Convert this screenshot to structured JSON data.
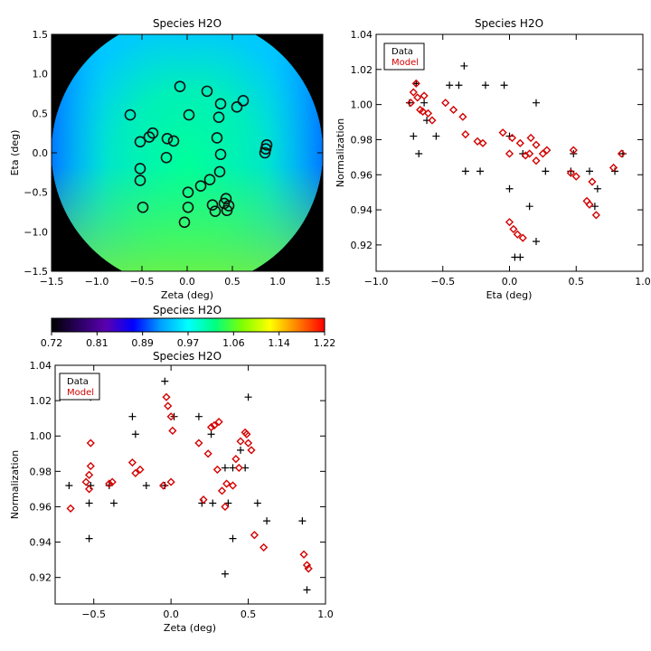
{
  "chart_data": [
    {
      "id": "map",
      "type": "heatmap",
      "title": "Species H2O",
      "xlabel": "Zeta (deg)",
      "ylabel": "Eta (deg)",
      "xlim": [
        -1.5,
        1.5
      ],
      "ylim": [
        -1.5,
        1.5
      ],
      "xticks": [
        -1.5,
        -1.0,
        -0.5,
        0.0,
        0.5,
        1.0,
        1.5
      ],
      "yticks": [
        -1.5,
        -1.0,
        -0.5,
        0.0,
        0.5,
        1.0,
        1.5
      ],
      "xtick_labels": [
        "−1.5",
        "−1.0",
        "−0.5",
        "0.0",
        "0.5",
        "1.0",
        "1.5"
      ],
      "ytick_labels": [
        "−1.5",
        "−1.0",
        "−0.5",
        "0.0",
        "0.5",
        "1.0",
        "1.5"
      ],
      "field_radius": 1.5,
      "outside_color": "#000000",
      "probe_points": [
        [
          -0.08,
          0.84
        ],
        [
          0.22,
          0.78
        ],
        [
          0.62,
          0.66
        ],
        [
          0.55,
          0.58
        ],
        [
          0.37,
          0.62
        ],
        [
          -0.63,
          0.48
        ],
        [
          -0.38,
          0.25
        ],
        [
          0.02,
          0.48
        ],
        [
          0.35,
          0.45
        ],
        [
          -0.42,
          0.2
        ],
        [
          -0.52,
          0.14
        ],
        [
          -0.22,
          0.18
        ],
        [
          -0.15,
          0.15
        ],
        [
          0.33,
          0.19
        ],
        [
          0.88,
          0.1
        ],
        [
          0.87,
          0.05
        ],
        [
          0.86,
          0.0
        ],
        [
          0.37,
          -0.02
        ],
        [
          -0.23,
          -0.06
        ],
        [
          -0.52,
          -0.2
        ],
        [
          -0.52,
          -0.35
        ],
        [
          0.36,
          -0.24
        ],
        [
          0.25,
          -0.34
        ],
        [
          0.15,
          -0.42
        ],
        [
          0.01,
          -0.5
        ],
        [
          0.43,
          -0.58
        ],
        [
          0.41,
          -0.64
        ],
        [
          0.28,
          -0.66
        ],
        [
          0.46,
          -0.67
        ],
        [
          0.44,
          -0.73
        ],
        [
          0.31,
          -0.74
        ],
        [
          -0.49,
          -0.69
        ],
        [
          0.01,
          -0.69
        ],
        [
          -0.03,
          -0.88
        ]
      ]
    },
    {
      "id": "colorbar",
      "type": "heatmap",
      "title": "Species H2O",
      "range": [
        0.72,
        1.22
      ],
      "tick_labels": [
        "0.72",
        "0.81",
        "0.89",
        "0.97",
        "1.06",
        "1.14",
        "1.22"
      ],
      "colormap_stops": [
        "#000000",
        "#2a0060",
        "#5a00b0",
        "#0000ff",
        "#00a0ff",
        "#00ffff",
        "#00ff80",
        "#80ff00",
        "#ffff00",
        "#ff8000",
        "#ff0000"
      ]
    },
    {
      "id": "eta_scatter",
      "type": "scatter",
      "title": "Species H2O",
      "xlabel": "Eta (deg)",
      "ylabel": "Normalization",
      "xlim": [
        -1.0,
        1.0
      ],
      "ylim": [
        0.905,
        1.04
      ],
      "xticks": [
        -1.0,
        -0.5,
        0.0,
        0.5,
        1.0
      ],
      "xtick_labels": [
        "−1.0",
        "−0.5",
        "0.0",
        "0.5",
        "1.0"
      ],
      "yticks": [
        0.92,
        0.94,
        0.96,
        0.98,
        1.0,
        1.02,
        1.04
      ],
      "ytick_labels": [
        "0.92",
        "0.94",
        "0.96",
        "0.98",
        "1.00",
        "1.02",
        "1.04"
      ],
      "legend": {
        "position": "top-left",
        "entries": [
          "Data",
          "Model"
        ]
      },
      "series": [
        {
          "name": "Data",
          "marker": "plus",
          "color": "#000000",
          "points": [
            [
              -0.9,
              1.031
            ],
            [
              -0.88,
              1.024
            ],
            [
              -0.68,
              1.022
            ],
            [
              -0.64,
              1.001
            ],
            [
              -0.7,
              1.012
            ],
            [
              -0.75,
              1.001
            ],
            [
              -0.62,
              0.991
            ],
            [
              -0.34,
              1.022
            ],
            [
              -0.45,
              1.011
            ],
            [
              -0.38,
              1.011
            ],
            [
              -0.18,
              1.011
            ],
            [
              -0.04,
              1.011
            ],
            [
              -0.72,
              0.982
            ],
            [
              -0.55,
              0.982
            ],
            [
              -0.68,
              0.972
            ],
            [
              -0.33,
              0.962
            ],
            [
              -0.22,
              0.962
            ],
            [
              0.0,
              0.982
            ],
            [
              0.1,
              0.972
            ],
            [
              0.2,
              1.001
            ],
            [
              0.27,
              0.962
            ],
            [
              0.0,
              0.952
            ],
            [
              0.15,
              0.942
            ],
            [
              0.2,
              0.922
            ],
            [
              0.04,
              0.913
            ],
            [
              0.08,
              0.913
            ],
            [
              0.46,
              0.962
            ],
            [
              0.48,
              0.972
            ],
            [
              0.6,
              0.962
            ],
            [
              0.64,
              0.942
            ],
            [
              0.66,
              0.952
            ],
            [
              0.79,
              0.962
            ],
            [
              0.85,
              0.972
            ]
          ]
        },
        {
          "name": "Model",
          "marker": "diamond",
          "color": "#d40000",
          "points": [
            [
              -0.88,
              1.022
            ],
            [
              -0.74,
              1.001
            ],
            [
              -0.72,
              1.007
            ],
            [
              -0.7,
              1.012
            ],
            [
              -0.69,
              1.004
            ],
            [
              -0.67,
              0.997
            ],
            [
              -0.65,
              0.996
            ],
            [
              -0.64,
              1.005
            ],
            [
              -0.61,
              0.995
            ],
            [
              -0.58,
              0.991
            ],
            [
              -0.48,
              1.001
            ],
            [
              -0.42,
              0.997
            ],
            [
              -0.35,
              0.993
            ],
            [
              -0.33,
              0.983
            ],
            [
              -0.24,
              0.979
            ],
            [
              -0.2,
              0.978
            ],
            [
              -0.05,
              0.984
            ],
            [
              0.0,
              0.972
            ],
            [
              0.02,
              0.981
            ],
            [
              0.08,
              0.978
            ],
            [
              0.12,
              0.971
            ],
            [
              0.15,
              0.972
            ],
            [
              0.16,
              0.981
            ],
            [
              0.2,
              0.977
            ],
            [
              0.2,
              0.968
            ],
            [
              0.25,
              0.972
            ],
            [
              0.28,
              0.974
            ],
            [
              0.0,
              0.933
            ],
            [
              0.03,
              0.929
            ],
            [
              0.06,
              0.926
            ],
            [
              0.1,
              0.924
            ],
            [
              0.46,
              0.961
            ],
            [
              0.48,
              0.974
            ],
            [
              0.5,
              0.959
            ],
            [
              0.58,
              0.945
            ],
            [
              0.6,
              0.943
            ],
            [
              0.62,
              0.956
            ],
            [
              0.65,
              0.937
            ],
            [
              0.78,
              0.964
            ],
            [
              0.84,
              0.972
            ]
          ]
        }
      ]
    },
    {
      "id": "zeta_scatter",
      "type": "scatter",
      "title": "Species H2O",
      "xlabel": "Zeta (deg)",
      "ylabel": "Normalization",
      "xlim": [
        -0.75,
        1.0
      ],
      "ylim": [
        0.905,
        1.04
      ],
      "xticks": [
        -0.5,
        0.0,
        0.5,
        1.0
      ],
      "xtick_labels": [
        "−0.5",
        "0.0",
        "0.5",
        "1.0"
      ],
      "yticks": [
        0.92,
        0.94,
        0.96,
        0.98,
        1.0,
        1.02,
        1.04
      ],
      "ytick_labels": [
        "0.92",
        "0.94",
        "0.96",
        "0.98",
        "1.00",
        "1.02",
        "1.04"
      ],
      "legend": {
        "position": "top-left",
        "entries": [
          "Data",
          "Model"
        ]
      },
      "series": [
        {
          "name": "Data",
          "marker": "plus",
          "color": "#000000",
          "points": [
            [
              -0.52,
              1.022
            ],
            [
              -0.04,
              1.031
            ],
            [
              0.02,
              1.011
            ],
            [
              -0.25,
              1.011
            ],
            [
              0.18,
              1.011
            ],
            [
              0.5,
              1.022
            ],
            [
              -0.23,
              1.001
            ],
            [
              0.26,
              1.001
            ],
            [
              -0.66,
              0.972
            ],
            [
              -0.52,
              0.972
            ],
            [
              -0.4,
              0.972
            ],
            [
              -0.16,
              0.972
            ],
            [
              -0.04,
              0.972
            ],
            [
              -0.37,
              0.962
            ],
            [
              -0.53,
              0.962
            ],
            [
              0.2,
              0.962
            ],
            [
              0.27,
              0.962
            ],
            [
              0.35,
              0.982
            ],
            [
              0.4,
              0.982
            ],
            [
              0.45,
              0.992
            ],
            [
              0.48,
              0.982
            ],
            [
              0.56,
              0.962
            ],
            [
              0.62,
              0.952
            ],
            [
              0.37,
              0.962
            ],
            [
              -0.53,
              0.942
            ],
            [
              0.4,
              0.942
            ],
            [
              0.35,
              0.922
            ],
            [
              0.85,
              0.952
            ],
            [
              0.88,
              0.913
            ]
          ]
        },
        {
          "name": "Model",
          "marker": "diamond",
          "color": "#d40000",
          "points": [
            [
              -0.52,
              0.996
            ],
            [
              -0.52,
              0.983
            ],
            [
              -0.53,
              0.978
            ],
            [
              -0.55,
              0.974
            ],
            [
              -0.53,
              0.97
            ],
            [
              -0.65,
              0.959
            ],
            [
              -0.4,
              0.973
            ],
            [
              -0.38,
              0.974
            ],
            [
              -0.25,
              0.985
            ],
            [
              -0.2,
              0.981
            ],
            [
              -0.23,
              0.979
            ],
            [
              -0.05,
              0.972
            ],
            [
              -0.03,
              1.022
            ],
            [
              -0.02,
              1.017
            ],
            [
              0.0,
              1.011
            ],
            [
              0.01,
              1.003
            ],
            [
              0.0,
              0.974
            ],
            [
              0.18,
              0.996
            ],
            [
              0.21,
              0.964
            ],
            [
              0.24,
              0.99
            ],
            [
              0.26,
              1.005
            ],
            [
              0.28,
              1.006
            ],
            [
              0.31,
              1.008
            ],
            [
              0.3,
              0.981
            ],
            [
              0.33,
              0.969
            ],
            [
              0.35,
              0.96
            ],
            [
              0.36,
              0.973
            ],
            [
              0.4,
              0.972
            ],
            [
              0.42,
              0.987
            ],
            [
              0.44,
              0.982
            ],
            [
              0.45,
              0.997
            ],
            [
              0.48,
              1.002
            ],
            [
              0.49,
              1.001
            ],
            [
              0.5,
              0.996
            ],
            [
              0.52,
              0.992
            ],
            [
              0.54,
              0.944
            ],
            [
              0.6,
              0.937
            ],
            [
              0.86,
              0.933
            ],
            [
              0.88,
              0.927
            ],
            [
              0.89,
              0.925
            ]
          ]
        }
      ]
    }
  ]
}
